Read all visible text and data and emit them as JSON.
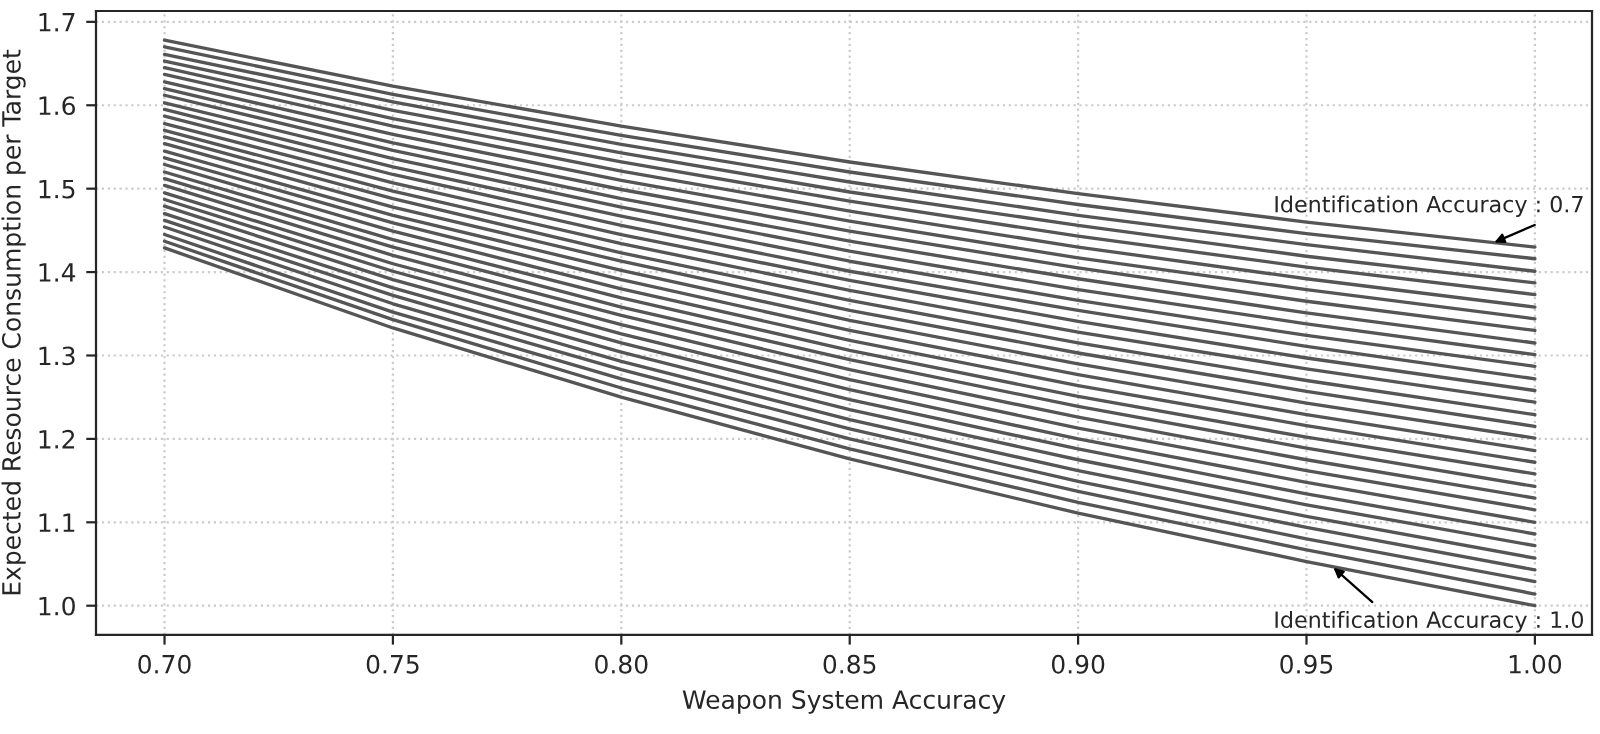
{
  "chart_data": {
    "type": "line",
    "xlabel": "Weapon System Accuracy",
    "ylabel": "Expected Resource Consumption per Target",
    "x": [
      0.7,
      0.75,
      0.8,
      0.85,
      0.9,
      0.95,
      1.0
    ],
    "xlim": [
      0.685,
      1.0125
    ],
    "ylim": [
      0.965,
      1.713
    ],
    "xticks": [
      {
        "value": 0.7,
        "label": "0.70"
      },
      {
        "value": 0.75,
        "label": "0.75"
      },
      {
        "value": 0.8,
        "label": "0.80"
      },
      {
        "value": 0.85,
        "label": "0.85"
      },
      {
        "value": 0.9,
        "label": "0.90"
      },
      {
        "value": 0.95,
        "label": "0.95"
      },
      {
        "value": 1.0,
        "label": "1.00"
      }
    ],
    "yticks": [
      {
        "value": 1.0,
        "label": "1.0"
      },
      1.1,
      1.2,
      1.3,
      1.4,
      1.5,
      1.6,
      1.7
    ],
    "grid": true,
    "line_style": "solid",
    "marker": "none",
    "annotations": [
      {
        "text": "Identification Accuracy : 0.7",
        "x": 0.99,
        "y": 1.433
      },
      {
        "text": "Identification Accuracy : 1.0",
        "x": 0.955,
        "y": 1.05
      }
    ],
    "series": [
      {
        "color": "#555555",
        "values": [
          1.678,
          1.623,
          1.575,
          1.532,
          1.494,
          1.46,
          1.43
        ]
      },
      {
        "color": "#555555",
        "values": [
          1.67,
          1.613,
          1.564,
          1.52,
          1.481,
          1.446,
          1.416
        ]
      },
      {
        "color": "#555555",
        "values": [
          1.661,
          1.604,
          1.553,
          1.508,
          1.468,
          1.433,
          1.401
        ]
      },
      {
        "color": "#555555",
        "values": [
          1.653,
          1.594,
          1.543,
          1.496,
          1.456,
          1.419,
          1.387
        ]
      },
      {
        "color": "#555555",
        "values": [
          1.645,
          1.584,
          1.532,
          1.485,
          1.443,
          1.406,
          1.373
        ]
      },
      {
        "color": "#555555",
        "values": [
          1.637,
          1.575,
          1.521,
          1.473,
          1.43,
          1.392,
          1.358
        ]
      },
      {
        "color": "#555555",
        "values": [
          1.628,
          1.565,
          1.51,
          1.461,
          1.417,
          1.379,
          1.344
        ]
      },
      {
        "color": "#555555",
        "values": [
          1.62,
          1.555,
          1.499,
          1.449,
          1.405,
          1.365,
          1.33
        ]
      },
      {
        "color": "#555555",
        "values": [
          1.612,
          1.546,
          1.488,
          1.437,
          1.392,
          1.351,
          1.315
        ]
      },
      {
        "color": "#555555",
        "values": [
          1.603,
          1.536,
          1.478,
          1.425,
          1.379,
          1.338,
          1.301
        ]
      },
      {
        "color": "#555555",
        "values": [
          1.595,
          1.526,
          1.467,
          1.413,
          1.366,
          1.324,
          1.287
        ]
      },
      {
        "color": "#555555",
        "values": [
          1.587,
          1.517,
          1.456,
          1.401,
          1.354,
          1.311,
          1.272
        ]
      },
      {
        "color": "#555555",
        "values": [
          1.578,
          1.507,
          1.445,
          1.39,
          1.341,
          1.297,
          1.258
        ]
      },
      {
        "color": "#555555",
        "values": [
          1.57,
          1.497,
          1.434,
          1.378,
          1.328,
          1.284,
          1.244
        ]
      },
      {
        "color": "#555555",
        "values": [
          1.562,
          1.488,
          1.423,
          1.366,
          1.315,
          1.27,
          1.229
        ]
      },
      {
        "color": "#555555",
        "values": [
          1.554,
          1.478,
          1.413,
          1.354,
          1.303,
          1.257,
          1.215
        ]
      },
      {
        "color": "#555555",
        "values": [
          1.545,
          1.468,
          1.402,
          1.342,
          1.29,
          1.243,
          1.201
        ]
      },
      {
        "color": "#555555",
        "values": [
          1.537,
          1.459,
          1.391,
          1.33,
          1.277,
          1.229,
          1.186
        ]
      },
      {
        "color": "#555555",
        "values": [
          1.529,
          1.449,
          1.38,
          1.318,
          1.264,
          1.216,
          1.172
        ]
      },
      {
        "color": "#555555",
        "values": [
          1.52,
          1.439,
          1.369,
          1.306,
          1.251,
          1.202,
          1.158
        ]
      },
      {
        "color": "#555555",
        "values": [
          1.512,
          1.43,
          1.358,
          1.295,
          1.239,
          1.189,
          1.143
        ]
      },
      {
        "color": "#555555",
        "values": [
          1.504,
          1.42,
          1.348,
          1.283,
          1.226,
          1.175,
          1.129
        ]
      },
      {
        "color": "#555555",
        "values": [
          1.495,
          1.41,
          1.337,
          1.271,
          1.213,
          1.162,
          1.115
        ]
      },
      {
        "color": "#555555",
        "values": [
          1.487,
          1.401,
          1.326,
          1.259,
          1.2,
          1.148,
          1.1
        ]
      },
      {
        "color": "#555555",
        "values": [
          1.479,
          1.391,
          1.315,
          1.247,
          1.188,
          1.134,
          1.086
        ]
      },
      {
        "color": "#555555",
        "values": [
          1.47,
          1.381,
          1.304,
          1.235,
          1.175,
          1.121,
          1.072
        ]
      },
      {
        "color": "#555555",
        "values": [
          1.462,
          1.372,
          1.293,
          1.223,
          1.162,
          1.107,
          1.057
        ]
      },
      {
        "color": "#555555",
        "values": [
          1.454,
          1.362,
          1.283,
          1.212,
          1.149,
          1.094,
          1.043
        ]
      },
      {
        "color": "#555555",
        "values": [
          1.445,
          1.352,
          1.272,
          1.2,
          1.137,
          1.08,
          1.029
        ]
      },
      {
        "color": "#555555",
        "values": [
          1.437,
          1.343,
          1.261,
          1.188,
          1.124,
          1.067,
          1.014
        ]
      },
      {
        "color": "#555555",
        "values": [
          1.429,
          1.333,
          1.25,
          1.176,
          1.111,
          1.053,
          1.0
        ]
      }
    ]
  }
}
